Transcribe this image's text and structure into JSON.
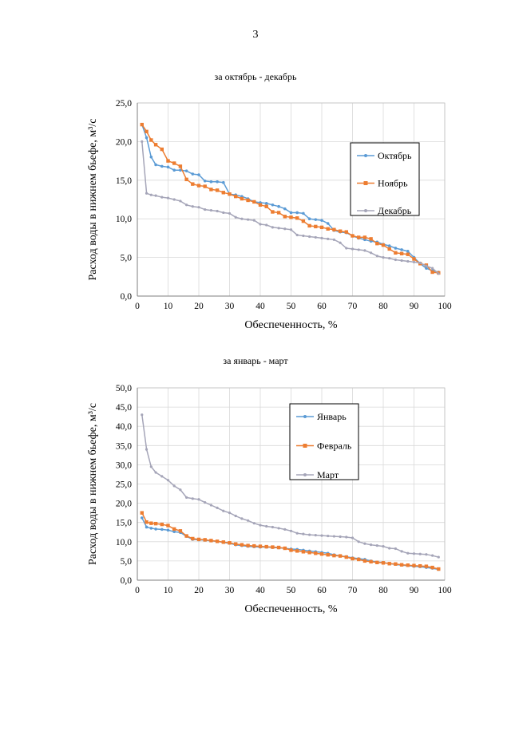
{
  "page_number": "3",
  "colors": {
    "blue": "#5b9bd5",
    "orange": "#ed7d31",
    "gray": "#a5a5b8"
  },
  "chart_data": [
    {
      "type": "line",
      "title": "за октябрь - декабрь",
      "xlabel": "Обеспеченность, %",
      "ylabel": "Расход воды в нижнем бьефе, м³/с",
      "xlim": [
        0,
        100
      ],
      "ylim": [
        0,
        25
      ],
      "xticks": [
        "0",
        "10",
        "20",
        "30",
        "40",
        "50",
        "60",
        "70",
        "80",
        "90",
        "100"
      ],
      "yticks": [
        "0,0",
        "5,0",
        "10,0",
        "15,0",
        "20,0",
        "25,0"
      ],
      "legend_position": "right",
      "series": [
        {
          "name": "Октябрь",
          "color": "#5b9bd5",
          "x": [
            1.5,
            3,
            4.5,
            6,
            8,
            10,
            12,
            14,
            16,
            18,
            20,
            22,
            24,
            26,
            28,
            30,
            32,
            34,
            36,
            38,
            40,
            42,
            44,
            46,
            48,
            50,
            52,
            54,
            56,
            58,
            60,
            62,
            64,
            66,
            68,
            70,
            72,
            74,
            76,
            78,
            80,
            82,
            84,
            86,
            88,
            90,
            92,
            94,
            96,
            98
          ],
          "values": [
            22.2,
            20.5,
            18.0,
            17.0,
            16.8,
            16.7,
            16.3,
            16.3,
            16.2,
            15.8,
            15.7,
            14.9,
            14.8,
            14.8,
            14.7,
            13.2,
            13.1,
            12.9,
            12.6,
            12.2,
            12.1,
            12.0,
            11.8,
            11.6,
            11.3,
            10.8,
            10.8,
            10.7,
            10.0,
            9.9,
            9.8,
            9.4,
            8.5,
            8.3,
            8.2,
            7.8,
            7.5,
            7.3,
            7.1,
            7.0,
            6.7,
            6.5,
            6.2,
            6.0,
            5.8,
            5.0,
            4.2,
            3.6,
            3.3,
            3.1
          ]
        },
        {
          "name": "Ноябрь",
          "color": "#ed7d31",
          "x": [
            1.5,
            3,
            4.5,
            6,
            8,
            10,
            12,
            14,
            16,
            18,
            20,
            22,
            24,
            26,
            28,
            30,
            32,
            34,
            36,
            38,
            40,
            42,
            44,
            46,
            48,
            50,
            52,
            54,
            56,
            58,
            60,
            62,
            64,
            66,
            68,
            70,
            72,
            74,
            76,
            78,
            80,
            82,
            84,
            86,
            88,
            90,
            92,
            94,
            96,
            98
          ],
          "values": [
            22.2,
            21.3,
            20.2,
            19.6,
            19.0,
            17.5,
            17.2,
            16.8,
            15.1,
            14.5,
            14.3,
            14.2,
            13.8,
            13.7,
            13.4,
            13.2,
            12.9,
            12.6,
            12.4,
            12.2,
            11.8,
            11.6,
            10.9,
            10.8,
            10.3,
            10.2,
            10.1,
            9.7,
            9.1,
            9.0,
            8.9,
            8.7,
            8.6,
            8.4,
            8.3,
            7.8,
            7.6,
            7.6,
            7.4,
            6.8,
            6.6,
            6.1,
            5.6,
            5.5,
            5.4,
            4.8,
            4.2,
            4.0,
            3.1,
            3.0
          ]
        },
        {
          "name": "Декабрь",
          "color": "#a5a5b8",
          "x": [
            1.5,
            3,
            4.5,
            6,
            8,
            10,
            12,
            14,
            16,
            18,
            20,
            22,
            24,
            26,
            28,
            30,
            32,
            34,
            36,
            38,
            40,
            42,
            44,
            46,
            48,
            50,
            52,
            54,
            56,
            58,
            60,
            62,
            64,
            66,
            68,
            70,
            72,
            74,
            76,
            78,
            80,
            82,
            84,
            86,
            88,
            90,
            92,
            94,
            96,
            98
          ],
          "values": [
            20.0,
            13.3,
            13.1,
            13.0,
            12.8,
            12.7,
            12.5,
            12.3,
            11.8,
            11.6,
            11.5,
            11.2,
            11.1,
            11.0,
            10.8,
            10.7,
            10.2,
            10.0,
            9.9,
            9.8,
            9.3,
            9.2,
            8.9,
            8.8,
            8.7,
            8.6,
            7.9,
            7.8,
            7.7,
            7.6,
            7.5,
            7.4,
            7.3,
            6.9,
            6.2,
            6.1,
            6.0,
            5.9,
            5.6,
            5.2,
            5.0,
            4.9,
            4.7,
            4.6,
            4.5,
            4.4,
            4.3,
            3.9,
            3.6,
            2.9
          ]
        }
      ]
    },
    {
      "type": "line",
      "title": "за январь - март",
      "xlabel": "Обеспеченность, %",
      "ylabel": "Расход воды в нижнем бьефе, м³/с",
      "xlim": [
        0,
        100
      ],
      "ylim": [
        0,
        50
      ],
      "xticks": [
        "0",
        "10",
        "20",
        "30",
        "40",
        "50",
        "60",
        "70",
        "80",
        "90",
        "100"
      ],
      "yticks": [
        "0,0",
        "5,0",
        "10,0",
        "15,0",
        "20,0",
        "25,0",
        "30,0",
        "35,0",
        "40,0",
        "45,0",
        "50,0"
      ],
      "legend_position": "right",
      "series": [
        {
          "name": "Январь",
          "color": "#5b9bd5",
          "x": [
            1.5,
            3,
            4.5,
            6,
            8,
            10,
            12,
            14,
            16,
            18,
            20,
            22,
            24,
            26,
            28,
            30,
            32,
            34,
            36,
            38,
            40,
            42,
            44,
            46,
            48,
            50,
            52,
            54,
            56,
            58,
            60,
            62,
            64,
            66,
            68,
            70,
            72,
            74,
            76,
            78,
            80,
            82,
            84,
            86,
            88,
            90,
            92,
            94,
            96,
            98
          ],
          "values": [
            16.2,
            13.8,
            13.5,
            13.3,
            13.2,
            13.0,
            12.6,
            12.4,
            11.4,
            10.6,
            10.5,
            10.4,
            10.2,
            10.1,
            9.8,
            9.6,
            9.2,
            9.0,
            8.8,
            8.7,
            8.6,
            8.6,
            8.5,
            8.4,
            8.3,
            8.1,
            8.0,
            7.8,
            7.6,
            7.4,
            7.2,
            7.0,
            6.6,
            6.3,
            6.1,
            5.8,
            5.6,
            5.4,
            5.0,
            4.7,
            4.6,
            4.3,
            4.1,
            3.9,
            3.8,
            3.6,
            3.5,
            3.3,
            3.1,
            2.8
          ]
        },
        {
          "name": "Февраль",
          "color": "#ed7d31",
          "x": [
            1.5,
            3,
            4.5,
            6,
            8,
            10,
            12,
            14,
            16,
            18,
            20,
            22,
            24,
            26,
            28,
            30,
            32,
            34,
            36,
            38,
            40,
            42,
            44,
            46,
            48,
            50,
            52,
            54,
            56,
            58,
            60,
            62,
            64,
            66,
            68,
            70,
            72,
            74,
            76,
            78,
            80,
            82,
            84,
            86,
            88,
            90,
            92,
            94,
            96,
            98
          ],
          "values": [
            17.5,
            15.1,
            14.8,
            14.7,
            14.5,
            14.2,
            13.3,
            12.8,
            11.5,
            10.8,
            10.6,
            10.5,
            10.3,
            10.1,
            9.9,
            9.7,
            9.4,
            9.2,
            9.0,
            8.9,
            8.8,
            8.7,
            8.6,
            8.5,
            8.3,
            7.8,
            7.6,
            7.4,
            7.2,
            7.0,
            6.8,
            6.6,
            6.4,
            6.3,
            6.0,
            5.6,
            5.4,
            5.0,
            4.8,
            4.6,
            4.5,
            4.3,
            4.2,
            4.0,
            3.9,
            3.8,
            3.7,
            3.6,
            3.3,
            2.9
          ]
        },
        {
          "name": "Март",
          "color": "#a5a5b8",
          "x": [
            1.5,
            3,
            4.5,
            6,
            8,
            10,
            12,
            14,
            16,
            18,
            20,
            22,
            24,
            26,
            28,
            30,
            32,
            34,
            36,
            38,
            40,
            42,
            44,
            46,
            48,
            50,
            52,
            54,
            56,
            58,
            60,
            62,
            64,
            66,
            68,
            70,
            72,
            74,
            76,
            78,
            80,
            82,
            84,
            86,
            88,
            90,
            92,
            94,
            96,
            98
          ],
          "values": [
            43.0,
            34.0,
            29.5,
            28.0,
            27.0,
            26.0,
            24.5,
            23.5,
            21.5,
            21.2,
            21.0,
            20.2,
            19.5,
            18.8,
            18.0,
            17.5,
            16.7,
            16.0,
            15.5,
            14.8,
            14.3,
            14.0,
            13.8,
            13.5,
            13.2,
            12.8,
            12.2,
            12.0,
            11.8,
            11.7,
            11.6,
            11.5,
            11.4,
            11.3,
            11.2,
            11.0,
            10.0,
            9.5,
            9.2,
            9.0,
            8.8,
            8.3,
            8.2,
            7.5,
            7.0,
            6.9,
            6.8,
            6.7,
            6.4,
            6.0
          ]
        }
      ]
    }
  ]
}
